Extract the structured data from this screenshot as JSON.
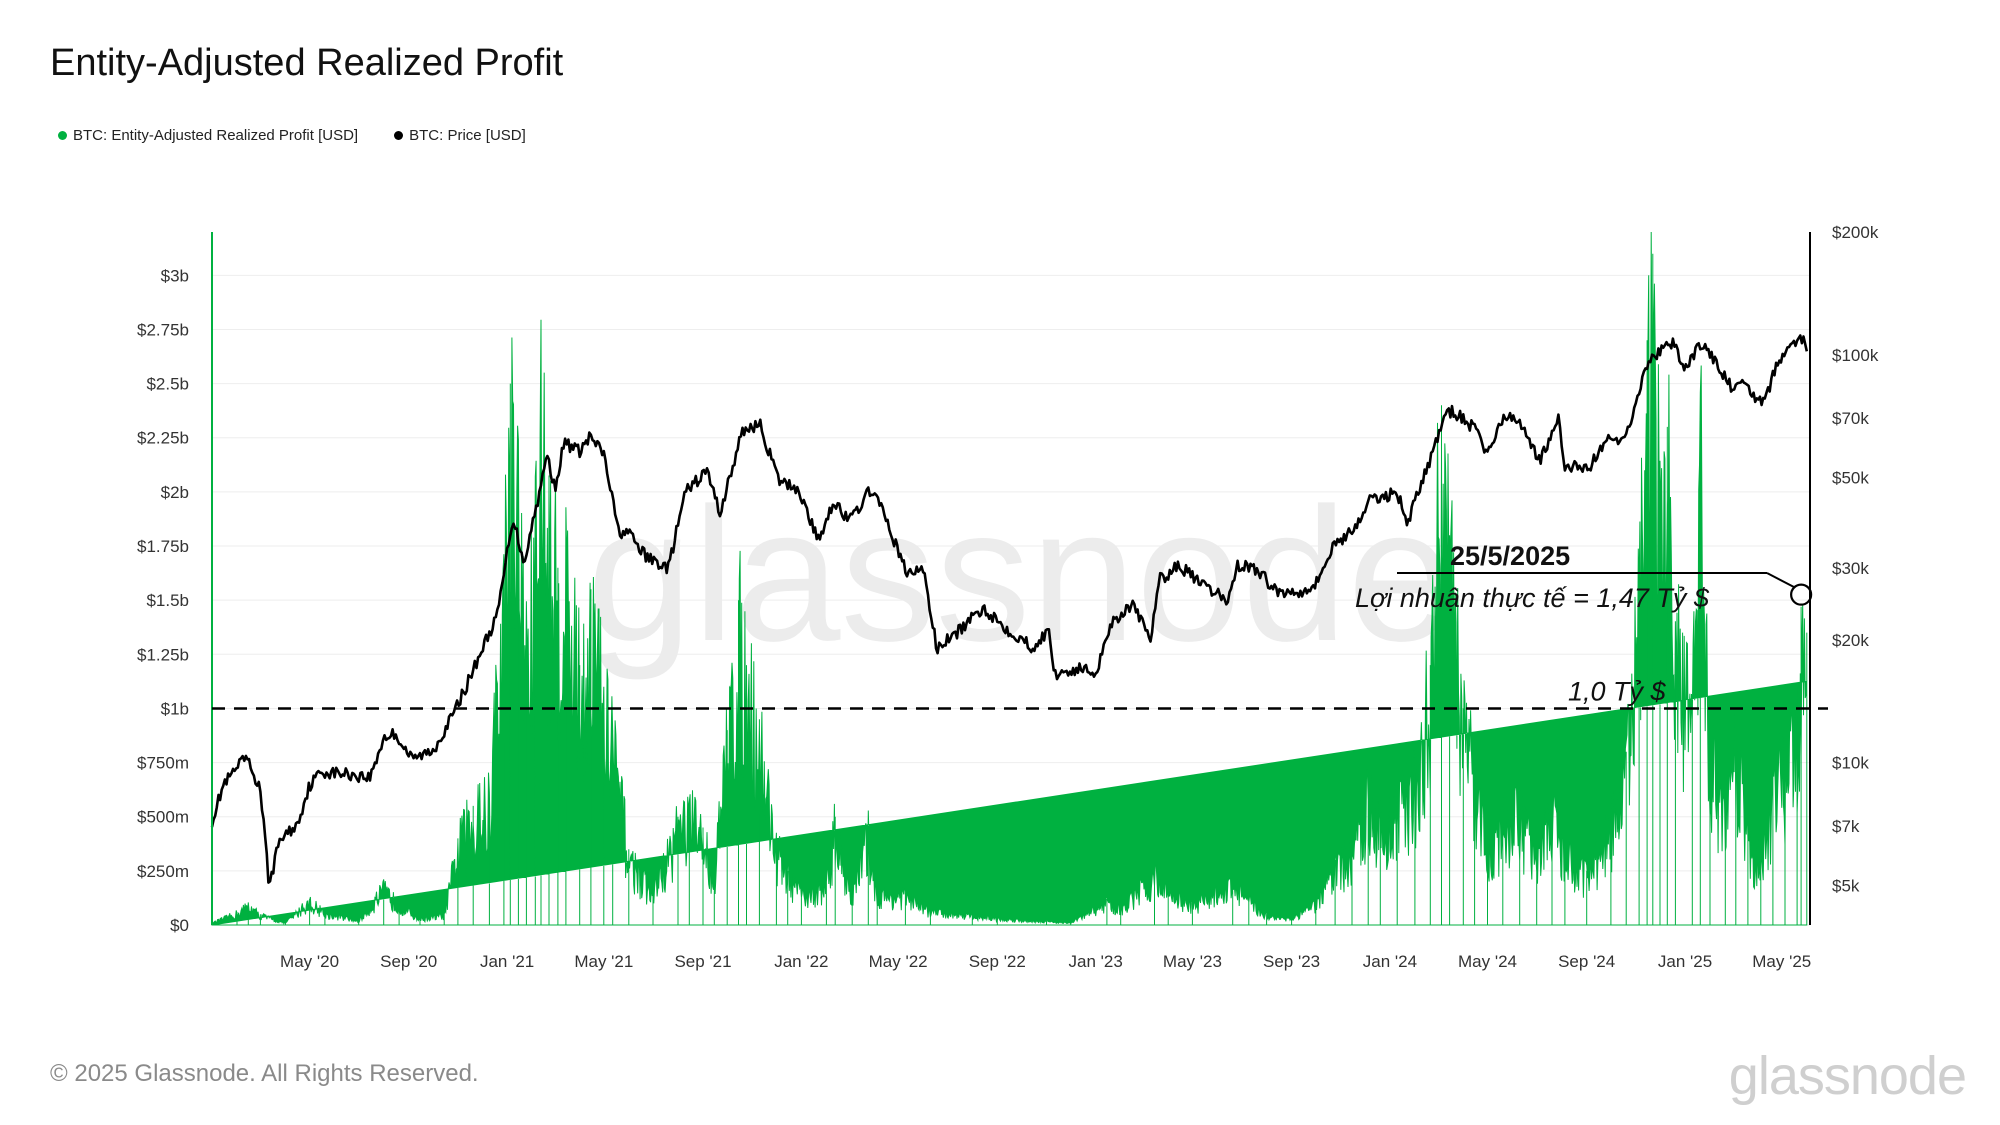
{
  "header": {
    "title": "Entity-Adjusted Realized Profit"
  },
  "legend": [
    {
      "label": "BTC: Entity-Adjusted Realized Profit [USD]",
      "color": "#00b140"
    },
    {
      "label": "BTC: Price [USD]",
      "color": "#000000"
    }
  ],
  "footer": {
    "copyright": "© 2025 Glassnode. All Rights Reserved.",
    "brand": "glassnode",
    "watermark": "glassnode"
  },
  "annotation": {
    "date": "25/5/2025",
    "text": "Lợi nhuận thực tế = 1,47 Tỷ $",
    "threshold_text": "1,0 Tỷ $",
    "threshold_value": 1.0,
    "point_value": 1.47
  },
  "chart_data": {
    "type": "area",
    "title": "Entity-Adjusted Realized Profit",
    "x_start": "2020-01-01",
    "x_end": "2025-06-05",
    "x_ticks": [
      {
        "label": "May '20",
        "date": "2020-05-01"
      },
      {
        "label": "Sep '20",
        "date": "2020-09-01"
      },
      {
        "label": "Jan '21",
        "date": "2021-01-01"
      },
      {
        "label": "May '21",
        "date": "2021-05-01"
      },
      {
        "label": "Sep '21",
        "date": "2021-09-01"
      },
      {
        "label": "Jan '22",
        "date": "2022-01-01"
      },
      {
        "label": "May '22",
        "date": "2022-05-01"
      },
      {
        "label": "Sep '22",
        "date": "2022-09-01"
      },
      {
        "label": "Jan '23",
        "date": "2023-01-01"
      },
      {
        "label": "May '23",
        "date": "2023-05-01"
      },
      {
        "label": "Sep '23",
        "date": "2023-09-01"
      },
      {
        "label": "Jan '24",
        "date": "2024-01-01"
      },
      {
        "label": "May '24",
        "date": "2024-05-01"
      },
      {
        "label": "Sep '24",
        "date": "2024-09-01"
      },
      {
        "label": "Jan '25",
        "date": "2025-01-01"
      },
      {
        "label": "May '25",
        "date": "2025-05-01"
      }
    ],
    "y_left": {
      "unit": "billion USD",
      "range": [
        0,
        3.2
      ],
      "ticks": [
        {
          "label": "$0",
          "value": 0
        },
        {
          "label": "$250m",
          "value": 0.25
        },
        {
          "label": "$500m",
          "value": 0.5
        },
        {
          "label": "$750m",
          "value": 0.75
        },
        {
          "label": "$1b",
          "value": 1.0
        },
        {
          "label": "$1.25b",
          "value": 1.25
        },
        {
          "label": "$1.5b",
          "value": 1.5
        },
        {
          "label": "$1.75b",
          "value": 1.75
        },
        {
          "label": "$2b",
          "value": 2.0
        },
        {
          "label": "$2.25b",
          "value": 2.25
        },
        {
          "label": "$2.5b",
          "value": 2.5
        },
        {
          "label": "$2.75b",
          "value": 2.75
        },
        {
          "label": "$3b",
          "value": 3.0
        }
      ]
    },
    "y_right": {
      "unit": "USD",
      "scale": "log",
      "range": [
        4000,
        200000
      ],
      "ticks": [
        {
          "label": "$5k",
          "value": 5000
        },
        {
          "label": "$7k",
          "value": 7000
        },
        {
          "label": "$10k",
          "value": 10000
        },
        {
          "label": "$20k",
          "value": 20000
        },
        {
          "label": "$30k",
          "value": 30000
        },
        {
          "label": "$50k",
          "value": 50000
        },
        {
          "label": "$70k",
          "value": 70000
        },
        {
          "label": "$100k",
          "value": 100000
        },
        {
          "label": "$200k",
          "value": 200000
        }
      ]
    },
    "series": [
      {
        "name": "BTC: Entity-Adjusted Realized Profit [USD]",
        "unit": "billion USD",
        "color": "#00b140",
        "points": [
          [
            "2020-01-01",
            0.01
          ],
          [
            "2020-02-01",
            0.06
          ],
          [
            "2020-02-15",
            0.1
          ],
          [
            "2020-03-01",
            0.05
          ],
          [
            "2020-04-01",
            0.01
          ],
          [
            "2020-05-01",
            0.12
          ],
          [
            "2020-05-20",
            0.06
          ],
          [
            "2020-07-01",
            0.02
          ],
          [
            "2020-08-01",
            0.18
          ],
          [
            "2020-08-20",
            0.1
          ],
          [
            "2020-09-15",
            0.03
          ],
          [
            "2020-10-15",
            0.05
          ],
          [
            "2020-11-01",
            0.4
          ],
          [
            "2020-11-20",
            0.55
          ],
          [
            "2020-12-10",
            0.6
          ],
          [
            "2020-12-28",
            1.6
          ],
          [
            "2021-01-05",
            2.5
          ],
          [
            "2021-01-15",
            1.95
          ],
          [
            "2021-01-25",
            1.3
          ],
          [
            "2021-02-05",
            1.8
          ],
          [
            "2021-02-12",
            2.5
          ],
          [
            "2021-02-22",
            1.9
          ],
          [
            "2021-03-05",
            1.65
          ],
          [
            "2021-03-15",
            1.75
          ],
          [
            "2021-04-01",
            1.2
          ],
          [
            "2021-04-15",
            1.55
          ],
          [
            "2021-05-01",
            1.1
          ],
          [
            "2021-05-12",
            0.9
          ],
          [
            "2021-06-01",
            0.35
          ],
          [
            "2021-07-01",
            0.15
          ],
          [
            "2021-08-01",
            0.5
          ],
          [
            "2021-08-15",
            0.55
          ],
          [
            "2021-09-01",
            0.45
          ],
          [
            "2021-09-15",
            0.25
          ],
          [
            "2021-10-01",
            0.9
          ],
          [
            "2021-10-15",
            1.5
          ],
          [
            "2021-10-25",
            1.2
          ],
          [
            "2021-11-10",
            0.95
          ],
          [
            "2021-12-01",
            0.4
          ],
          [
            "2021-12-15",
            0.25
          ],
          [
            "2022-01-01",
            0.15
          ],
          [
            "2022-02-01",
            0.2
          ],
          [
            "2022-02-12",
            0.5
          ],
          [
            "2022-03-05",
            0.15
          ],
          [
            "2022-03-25",
            0.45
          ],
          [
            "2022-04-05",
            0.15
          ],
          [
            "2022-05-10",
            0.15
          ],
          [
            "2022-06-10",
            0.07
          ],
          [
            "2022-08-01",
            0.05
          ],
          [
            "2022-09-01",
            0.03
          ],
          [
            "2022-11-01",
            0.02
          ],
          [
            "2022-12-01",
            0.01
          ],
          [
            "2023-01-15",
            0.12
          ],
          [
            "2023-02-01",
            0.08
          ],
          [
            "2023-03-15",
            0.25
          ],
          [
            "2023-04-01",
            0.18
          ],
          [
            "2023-05-01",
            0.1
          ],
          [
            "2023-06-20",
            0.22
          ],
          [
            "2023-07-10",
            0.12
          ],
          [
            "2023-08-01",
            0.05
          ],
          [
            "2023-09-01",
            0.03
          ],
          [
            "2023-10-01",
            0.1
          ],
          [
            "2023-10-25",
            0.3
          ],
          [
            "2023-11-15",
            0.35
          ],
          [
            "2023-12-05",
            0.65
          ],
          [
            "2023-12-20",
            0.5
          ],
          [
            "2024-01-10",
            0.55
          ],
          [
            "2024-02-01",
            0.7
          ],
          [
            "2024-02-20",
            1.2
          ],
          [
            "2024-03-05",
            2.4
          ],
          [
            "2024-03-15",
            1.8
          ],
          [
            "2024-04-01",
            1.0
          ],
          [
            "2024-04-15",
            0.75
          ],
          [
            "2024-05-01",
            0.4
          ],
          [
            "2024-05-20",
            0.5
          ],
          [
            "2024-06-10",
            0.55
          ],
          [
            "2024-07-01",
            0.4
          ],
          [
            "2024-07-20",
            0.55
          ],
          [
            "2024-08-05",
            0.35
          ],
          [
            "2024-09-01",
            0.25
          ],
          [
            "2024-10-01",
            0.5
          ],
          [
            "2024-10-20",
            0.8
          ],
          [
            "2024-11-05",
            1.5
          ],
          [
            "2024-11-15",
            2.7
          ],
          [
            "2024-11-22",
            3.1
          ],
          [
            "2024-12-01",
            1.9
          ],
          [
            "2024-12-10",
            2.3
          ],
          [
            "2024-12-20",
            1.4
          ],
          [
            "2025-01-10",
            1.0
          ],
          [
            "2025-01-20",
            2.3
          ],
          [
            "2025-02-01",
            0.9
          ],
          [
            "2025-02-20",
            0.55
          ],
          [
            "2025-03-05",
            0.9
          ],
          [
            "2025-03-20",
            0.45
          ],
          [
            "2025-04-05",
            0.3
          ],
          [
            "2025-04-20",
            0.7
          ],
          [
            "2025-05-05",
            0.8
          ],
          [
            "2025-05-20",
            1.1
          ],
          [
            "2025-05-25",
            1.47
          ],
          [
            "2025-06-01",
            1.35
          ]
        ]
      },
      {
        "name": "BTC: Price [USD]",
        "unit": "USD",
        "color": "#000000",
        "points": [
          [
            "2020-01-01",
            7200
          ],
          [
            "2020-01-15",
            8800
          ],
          [
            "2020-02-12",
            10300
          ],
          [
            "2020-03-01",
            8600
          ],
          [
            "2020-03-12",
            5000
          ],
          [
            "2020-03-25",
            6500
          ],
          [
            "2020-04-15",
            7000
          ],
          [
            "2020-05-01",
            8800
          ],
          [
            "2020-05-15",
            9500
          ],
          [
            "2020-06-15",
            9400
          ],
          [
            "2020-07-15",
            9200
          ],
          [
            "2020-08-01",
            11500
          ],
          [
            "2020-08-15",
            11800
          ],
          [
            "2020-09-05",
            10200
          ],
          [
            "2020-10-01",
            10700
          ],
          [
            "2020-10-25",
            13000
          ],
          [
            "2020-11-15",
            16000
          ],
          [
            "2020-12-01",
            19000
          ],
          [
            "2020-12-20",
            23000
          ],
          [
            "2021-01-08",
            40000
          ],
          [
            "2021-01-22",
            31000
          ],
          [
            "2021-02-10",
            46000
          ],
          [
            "2021-02-20",
            57000
          ],
          [
            "2021-03-01",
            47000
          ],
          [
            "2021-03-13",
            61000
          ],
          [
            "2021-04-01",
            58000
          ],
          [
            "2021-04-14",
            63000
          ],
          [
            "2021-05-01",
            57000
          ],
          [
            "2021-05-19",
            37000
          ],
          [
            "2021-06-01",
            36500
          ],
          [
            "2021-06-22",
            32000
          ],
          [
            "2021-07-20",
            30000
          ],
          [
            "2021-08-10",
            46000
          ],
          [
            "2021-09-06",
            52000
          ],
          [
            "2021-09-22",
            41000
          ],
          [
            "2021-10-10",
            55000
          ],
          [
            "2021-10-20",
            65000
          ],
          [
            "2021-11-10",
            68000
          ],
          [
            "2021-12-04",
            49000
          ],
          [
            "2021-12-28",
            47000
          ],
          [
            "2022-01-22",
            35000
          ],
          [
            "2022-02-10",
            44000
          ],
          [
            "2022-03-01",
            39000
          ],
          [
            "2022-03-29",
            47000
          ],
          [
            "2022-04-15",
            40000
          ],
          [
            "2022-05-12",
            29000
          ],
          [
            "2022-06-01",
            30000
          ],
          [
            "2022-06-18",
            19000
          ],
          [
            "2022-07-15",
            21000
          ],
          [
            "2022-08-15",
            24000
          ],
          [
            "2022-09-10",
            21500
          ],
          [
            "2022-10-15",
            19200
          ],
          [
            "2022-11-05",
            21000
          ],
          [
            "2022-11-10",
            16500
          ],
          [
            "2022-12-15",
            17000
          ],
          [
            "2023-01-01",
            16600
          ],
          [
            "2023-01-20",
            22000
          ],
          [
            "2023-02-15",
            24500
          ],
          [
            "2023-03-10",
            20000
          ],
          [
            "2023-03-20",
            28000
          ],
          [
            "2023-04-15",
            30500
          ],
          [
            "2023-05-15",
            27000
          ],
          [
            "2023-06-15",
            25000
          ],
          [
            "2023-06-25",
            30500
          ],
          [
            "2023-07-15",
            30200
          ],
          [
            "2023-08-18",
            26000
          ],
          [
            "2023-09-15",
            26500
          ],
          [
            "2023-10-01",
            27500
          ],
          [
            "2023-10-25",
            34500
          ],
          [
            "2023-11-15",
            37000
          ],
          [
            "2023-12-08",
            44000
          ],
          [
            "2024-01-10",
            46000
          ],
          [
            "2024-01-23",
            39000
          ],
          [
            "2024-02-15",
            52000
          ],
          [
            "2024-03-05",
            67000
          ],
          [
            "2024-03-14",
            73000
          ],
          [
            "2024-04-01",
            70000
          ],
          [
            "2024-04-20",
            64000
          ],
          [
            "2024-05-01",
            57000
          ],
          [
            "2024-05-20",
            70000
          ],
          [
            "2024-06-10",
            69000
          ],
          [
            "2024-07-05",
            55000
          ],
          [
            "2024-07-28",
            69000
          ],
          [
            "2024-08-05",
            53000
          ],
          [
            "2024-09-06",
            53500
          ],
          [
            "2024-09-30",
            64000
          ],
          [
            "2024-10-10",
            60000
          ],
          [
            "2024-10-29",
            72000
          ],
          [
            "2024-11-12",
            90000
          ],
          [
            "2024-11-22",
            99000
          ],
          [
            "2024-12-17",
            107000
          ],
          [
            "2024-12-30",
            92000
          ],
          [
            "2025-01-20",
            106000
          ],
          [
            "2025-02-05",
            98000
          ],
          [
            "2025-02-28",
            83000
          ],
          [
            "2025-03-15",
            84000
          ],
          [
            "2025-04-08",
            76000
          ],
          [
            "2025-04-25",
            94000
          ],
          [
            "2025-05-10",
            104000
          ],
          [
            "2025-05-22",
            111000
          ],
          [
            "2025-06-01",
            105000
          ]
        ]
      }
    ]
  }
}
